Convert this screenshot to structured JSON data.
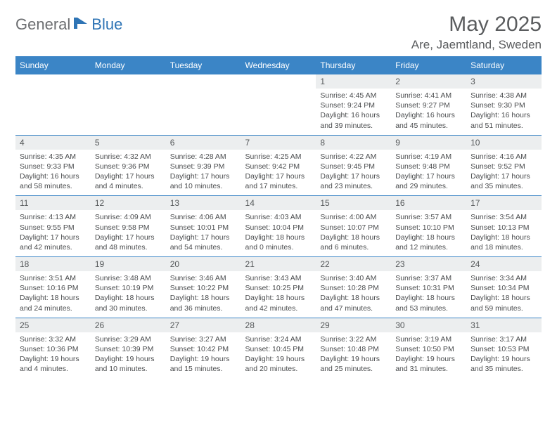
{
  "brand": {
    "part1": "General",
    "part2": "Blue"
  },
  "header": {
    "title": "May 2025",
    "location": "Are, Jaemtland, Sweden"
  },
  "styling": {
    "accent_color": "#3b85c6",
    "header_row_bg": "#3b85c6",
    "header_row_text": "#ffffff",
    "daynum_bg": "#eceeef",
    "text_color": "#4a4c4e",
    "title_color": "#5a5c5e",
    "logo_gray": "#6c6e71",
    "logo_blue": "#2e74b5",
    "page_bg": "#ffffff",
    "title_fontsize": 30,
    "location_fontsize": 17,
    "weekday_fontsize": 12,
    "detail_fontsize": 10.5
  },
  "weekdays": [
    "Sunday",
    "Monday",
    "Tuesday",
    "Wednesday",
    "Thursday",
    "Friday",
    "Saturday"
  ],
  "weeks": [
    [
      null,
      null,
      null,
      null,
      {
        "n": "1",
        "sunrise": "Sunrise: 4:45 AM",
        "sunset": "Sunset: 9:24 PM",
        "d1": "Daylight: 16 hours",
        "d2": "and 39 minutes."
      },
      {
        "n": "2",
        "sunrise": "Sunrise: 4:41 AM",
        "sunset": "Sunset: 9:27 PM",
        "d1": "Daylight: 16 hours",
        "d2": "and 45 minutes."
      },
      {
        "n": "3",
        "sunrise": "Sunrise: 4:38 AM",
        "sunset": "Sunset: 9:30 PM",
        "d1": "Daylight: 16 hours",
        "d2": "and 51 minutes."
      }
    ],
    [
      {
        "n": "4",
        "sunrise": "Sunrise: 4:35 AM",
        "sunset": "Sunset: 9:33 PM",
        "d1": "Daylight: 16 hours",
        "d2": "and 58 minutes."
      },
      {
        "n": "5",
        "sunrise": "Sunrise: 4:32 AM",
        "sunset": "Sunset: 9:36 PM",
        "d1": "Daylight: 17 hours",
        "d2": "and 4 minutes."
      },
      {
        "n": "6",
        "sunrise": "Sunrise: 4:28 AM",
        "sunset": "Sunset: 9:39 PM",
        "d1": "Daylight: 17 hours",
        "d2": "and 10 minutes."
      },
      {
        "n": "7",
        "sunrise": "Sunrise: 4:25 AM",
        "sunset": "Sunset: 9:42 PM",
        "d1": "Daylight: 17 hours",
        "d2": "and 17 minutes."
      },
      {
        "n": "8",
        "sunrise": "Sunrise: 4:22 AM",
        "sunset": "Sunset: 9:45 PM",
        "d1": "Daylight: 17 hours",
        "d2": "and 23 minutes."
      },
      {
        "n": "9",
        "sunrise": "Sunrise: 4:19 AM",
        "sunset": "Sunset: 9:48 PM",
        "d1": "Daylight: 17 hours",
        "d2": "and 29 minutes."
      },
      {
        "n": "10",
        "sunrise": "Sunrise: 4:16 AM",
        "sunset": "Sunset: 9:52 PM",
        "d1": "Daylight: 17 hours",
        "d2": "and 35 minutes."
      }
    ],
    [
      {
        "n": "11",
        "sunrise": "Sunrise: 4:13 AM",
        "sunset": "Sunset: 9:55 PM",
        "d1": "Daylight: 17 hours",
        "d2": "and 42 minutes."
      },
      {
        "n": "12",
        "sunrise": "Sunrise: 4:09 AM",
        "sunset": "Sunset: 9:58 PM",
        "d1": "Daylight: 17 hours",
        "d2": "and 48 minutes."
      },
      {
        "n": "13",
        "sunrise": "Sunrise: 4:06 AM",
        "sunset": "Sunset: 10:01 PM",
        "d1": "Daylight: 17 hours",
        "d2": "and 54 minutes."
      },
      {
        "n": "14",
        "sunrise": "Sunrise: 4:03 AM",
        "sunset": "Sunset: 10:04 PM",
        "d1": "Daylight: 18 hours",
        "d2": "and 0 minutes."
      },
      {
        "n": "15",
        "sunrise": "Sunrise: 4:00 AM",
        "sunset": "Sunset: 10:07 PM",
        "d1": "Daylight: 18 hours",
        "d2": "and 6 minutes."
      },
      {
        "n": "16",
        "sunrise": "Sunrise: 3:57 AM",
        "sunset": "Sunset: 10:10 PM",
        "d1": "Daylight: 18 hours",
        "d2": "and 12 minutes."
      },
      {
        "n": "17",
        "sunrise": "Sunrise: 3:54 AM",
        "sunset": "Sunset: 10:13 PM",
        "d1": "Daylight: 18 hours",
        "d2": "and 18 minutes."
      }
    ],
    [
      {
        "n": "18",
        "sunrise": "Sunrise: 3:51 AM",
        "sunset": "Sunset: 10:16 PM",
        "d1": "Daylight: 18 hours",
        "d2": "and 24 minutes."
      },
      {
        "n": "19",
        "sunrise": "Sunrise: 3:48 AM",
        "sunset": "Sunset: 10:19 PM",
        "d1": "Daylight: 18 hours",
        "d2": "and 30 minutes."
      },
      {
        "n": "20",
        "sunrise": "Sunrise: 3:46 AM",
        "sunset": "Sunset: 10:22 PM",
        "d1": "Daylight: 18 hours",
        "d2": "and 36 minutes."
      },
      {
        "n": "21",
        "sunrise": "Sunrise: 3:43 AM",
        "sunset": "Sunset: 10:25 PM",
        "d1": "Daylight: 18 hours",
        "d2": "and 42 minutes."
      },
      {
        "n": "22",
        "sunrise": "Sunrise: 3:40 AM",
        "sunset": "Sunset: 10:28 PM",
        "d1": "Daylight: 18 hours",
        "d2": "and 47 minutes."
      },
      {
        "n": "23",
        "sunrise": "Sunrise: 3:37 AM",
        "sunset": "Sunset: 10:31 PM",
        "d1": "Daylight: 18 hours",
        "d2": "and 53 minutes."
      },
      {
        "n": "24",
        "sunrise": "Sunrise: 3:34 AM",
        "sunset": "Sunset: 10:34 PM",
        "d1": "Daylight: 18 hours",
        "d2": "and 59 minutes."
      }
    ],
    [
      {
        "n": "25",
        "sunrise": "Sunrise: 3:32 AM",
        "sunset": "Sunset: 10:36 PM",
        "d1": "Daylight: 19 hours",
        "d2": "and 4 minutes."
      },
      {
        "n": "26",
        "sunrise": "Sunrise: 3:29 AM",
        "sunset": "Sunset: 10:39 PM",
        "d1": "Daylight: 19 hours",
        "d2": "and 10 minutes."
      },
      {
        "n": "27",
        "sunrise": "Sunrise: 3:27 AM",
        "sunset": "Sunset: 10:42 PM",
        "d1": "Daylight: 19 hours",
        "d2": "and 15 minutes."
      },
      {
        "n": "28",
        "sunrise": "Sunrise: 3:24 AM",
        "sunset": "Sunset: 10:45 PM",
        "d1": "Daylight: 19 hours",
        "d2": "and 20 minutes."
      },
      {
        "n": "29",
        "sunrise": "Sunrise: 3:22 AM",
        "sunset": "Sunset: 10:48 PM",
        "d1": "Daylight: 19 hours",
        "d2": "and 25 minutes."
      },
      {
        "n": "30",
        "sunrise": "Sunrise: 3:19 AM",
        "sunset": "Sunset: 10:50 PM",
        "d1": "Daylight: 19 hours",
        "d2": "and 31 minutes."
      },
      {
        "n": "31",
        "sunrise": "Sunrise: 3:17 AM",
        "sunset": "Sunset: 10:53 PM",
        "d1": "Daylight: 19 hours",
        "d2": "and 35 minutes."
      }
    ]
  ]
}
